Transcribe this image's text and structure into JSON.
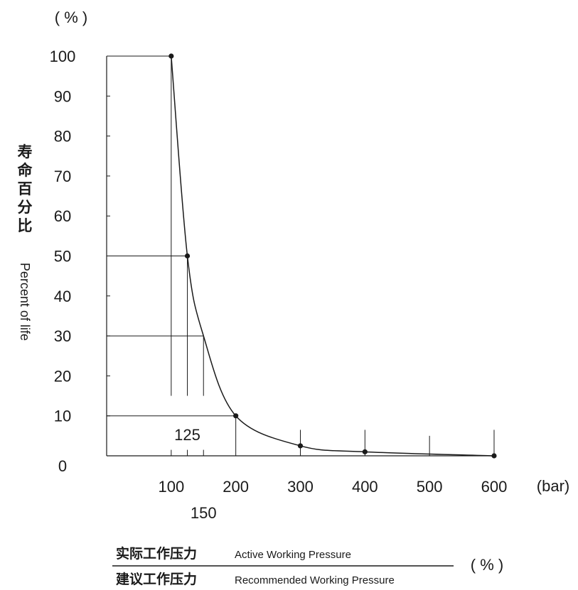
{
  "chart_data": {
    "type": "line",
    "y_unit": "( % )",
    "x_unit": "(bar)",
    "ylabel_cn": "寿命百分比",
    "ylabel_en": "Percent of life",
    "x_ticks": [
      100,
      200,
      300,
      400,
      500,
      600
    ],
    "x_ticks_secondary": [
      125,
      150
    ],
    "y_ticks": [
      0,
      10,
      20,
      30,
      40,
      50,
      60,
      70,
      80,
      90,
      100
    ],
    "xlim": [
      0,
      600
    ],
    "ylim": [
      0,
      100
    ],
    "grid": false,
    "series": [
      {
        "points": [
          [
            100,
            100
          ],
          [
            125,
            50
          ],
          [
            150,
            30
          ],
          [
            200,
            10
          ],
          [
            300,
            2.5
          ],
          [
            400,
            1
          ],
          [
            600,
            0
          ]
        ],
        "markers": [
          [
            100,
            100
          ],
          [
            125,
            50
          ],
          [
            200,
            10
          ],
          [
            300,
            2.5
          ],
          [
            400,
            1
          ],
          [
            600,
            0
          ]
        ]
      }
    ],
    "guides": [
      {
        "x": 100,
        "y": 100
      },
      {
        "x": 125,
        "y": 50
      },
      {
        "x": 150,
        "y": 30
      },
      {
        "x": 200,
        "y": 10
      }
    ],
    "formula": {
      "numerator_cn": "实际工作压力",
      "numerator_en": "Active Working Pressure",
      "denominator_cn": "建议工作压力",
      "denominator_en": "Recommended Working Pressure",
      "unit": "( % )"
    }
  }
}
